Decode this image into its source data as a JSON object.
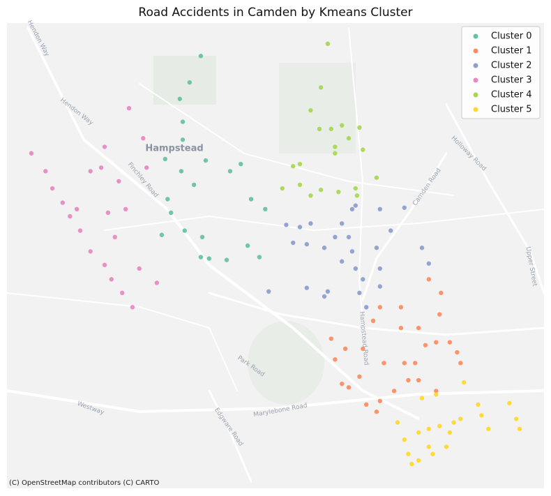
{
  "chart_data": {
    "type": "scatter",
    "title": "Road Accidents in Camden by Kmeans Cluster",
    "xlim": [
      -0.215,
      -0.105
    ],
    "ylim": [
      51.51,
      51.575
    ],
    "legend": "upper right",
    "basemap_labels": [
      "Hampstead",
      "Hendon Way",
      "Hendon Way",
      "Finchley Road",
      "Holloway Road",
      "Camden Road",
      "Upper Street",
      "Park Road",
      "Westway",
      "Edgware Road",
      "Marylebone Road",
      "Hampstead Road"
    ],
    "attribution": "(C) OpenStreetMap contributors (C) CARTO",
    "series": [
      {
        "name": "Cluster 0",
        "color": "#66c2a5",
        "x": [
          -0.1753,
          -0.1776,
          -0.1796,
          -0.179,
          -0.179,
          -0.1826,
          -0.1793,
          -0.1767,
          -0.1821,
          -0.1814,
          -0.1786,
          -0.175,
          -0.1753,
          -0.1736,
          -0.17,
          -0.1633,
          -0.1657,
          -0.165,
          -0.1621,
          -0.1693,
          -0.1671,
          -0.1743,
          -0.1833
        ],
        "y": [
          51.5704,
          51.5667,
          51.5644,
          51.5612,
          51.5587,
          51.556,
          51.5543,
          51.5524,
          51.5504,
          51.5485,
          51.546,
          51.5451,
          51.5423,
          51.5421,
          51.5419,
          51.5423,
          51.5439,
          51.5504,
          51.549,
          51.5543,
          51.5553,
          51.5558,
          51.5454
        ]
      },
      {
        "name": "Cluster 1",
        "color": "#fc8d62",
        "x": [
          -0.1261,
          -0.1286,
          -0.1343,
          -0.1386,
          -0.14,
          -0.1486,
          -0.1478,
          -0.1464,
          -0.145,
          -0.1428,
          -0.1414,
          -0.1386,
          -0.1357,
          -0.1328,
          -0.1314,
          -0.1293,
          -0.1271,
          -0.1243,
          -0.1228,
          -0.1221,
          -0.1307,
          -0.1271,
          -0.1336,
          -0.1378,
          -0.1307,
          -0.1343,
          -0.1457,
          -0.1421,
          -0.1264,
          -0.1393
        ],
        "y": [
          51.5373,
          51.5392,
          51.5353,
          51.5353,
          51.5334,
          51.5309,
          51.528,
          51.5246,
          51.5241,
          51.5256,
          51.5217,
          51.5222,
          51.5236,
          51.5251,
          51.5275,
          51.53,
          51.5304,
          51.5304,
          51.529,
          51.5275,
          51.5251,
          51.5236,
          51.5275,
          51.5275,
          51.5324,
          51.5324,
          51.5295,
          51.5295,
          51.5343,
          51.5207
        ]
      },
      {
        "name": "Cluster 2",
        "color": "#8da0cb",
        "x": [
          -0.1578,
          -0.155,
          -0.1528,
          -0.1564,
          -0.1536,
          -0.15,
          -0.1464,
          -0.145,
          -0.1443,
          -0.1464,
          -0.1436,
          -0.1421,
          -0.1428,
          -0.1414,
          -0.15,
          -0.1536,
          -0.1614,
          -0.1493,
          -0.1386,
          -0.1336,
          -0.1364,
          -0.1393,
          -0.1386,
          -0.1386,
          -0.13,
          -0.1286,
          -0.1443,
          -0.1436,
          -0.1478
        ],
        "y": [
          51.5468,
          51.5465,
          51.547,
          51.5443,
          51.5441,
          51.5436,
          51.547,
          51.5451,
          51.5431,
          51.5417,
          51.5407,
          51.5392,
          51.5373,
          51.5353,
          51.5368,
          51.538,
          51.5375,
          51.5375,
          51.549,
          51.5492,
          51.546,
          51.5436,
          51.5407,
          51.5382,
          51.5436,
          51.5414,
          51.549,
          51.5495,
          51.5451
        ]
      },
      {
        "name": "Cluster 3",
        "color": "#e78ac3",
        "x": [
          -0.21,
          -0.2071,
          -0.2057,
          -0.2036,
          -0.2021,
          -0.2,
          -0.1979,
          -0.195,
          -0.1936,
          -0.1914,
          -0.1893,
          -0.195,
          -0.1957,
          -0.1921,
          -0.1907,
          -0.19,
          -0.1871,
          -0.1864,
          -0.2007,
          -0.1879,
          -0.1843,
          -0.1943,
          -0.1929,
          -0.1979
        ],
        "y": [
          51.5568,
          51.5543,
          51.5519,
          51.5499,
          51.548,
          51.546,
          51.5431,
          51.5412,
          51.5392,
          51.5373,
          51.5353,
          51.5577,
          51.5548,
          51.5529,
          51.549,
          51.5631,
          51.5589,
          51.5548,
          51.549,
          51.5407,
          51.5387,
          51.5485,
          51.5451,
          51.5543
        ]
      },
      {
        "name": "Cluster 4",
        "color": "#a6d854",
        "x": [
          -0.1493,
          -0.1507,
          -0.1528,
          -0.151,
          -0.1486,
          -0.1464,
          -0.1428,
          -0.145,
          -0.1478,
          -0.1421,
          -0.155,
          -0.1564,
          -0.1478,
          -0.1586,
          -0.155,
          -0.1507,
          -0.1471,
          -0.1436,
          -0.1433,
          -0.1393,
          -0.1528
        ],
        "y": [
          51.5721,
          51.566,
          51.5628,
          51.5602,
          51.5602,
          51.5607,
          51.5604,
          51.5589,
          51.5577,
          51.5573,
          51.5553,
          51.555,
          51.5568,
          51.5519,
          51.5524,
          51.5517,
          51.5514,
          51.5519,
          51.5509,
          51.5534,
          51.5509
        ]
      },
      {
        "name": "Cluster 5",
        "color": "#ffd92f",
        "x": [
          -0.1336,
          -0.1328,
          -0.1307,
          -0.1286,
          -0.1264,
          -0.1243,
          -0.125,
          -0.1278,
          -0.1307,
          -0.1321,
          -0.1221,
          -0.1178,
          -0.1185,
          -0.1121,
          -0.1107,
          -0.11,
          -0.1214,
          -0.13,
          -0.1271,
          -0.135,
          -0.1286,
          -0.1164,
          -0.1235
        ],
        "y": [
          51.5168,
          51.5148,
          51.5178,
          51.5183,
          51.5187,
          51.5178,
          51.5158,
          51.5148,
          51.5139,
          51.5134,
          51.5197,
          51.5202,
          51.5217,
          51.5219,
          51.5197,
          51.5183,
          51.5248,
          51.5226,
          51.5231,
          51.5192,
          51.5158,
          51.5183,
          51.5192
        ]
      }
    ]
  }
}
